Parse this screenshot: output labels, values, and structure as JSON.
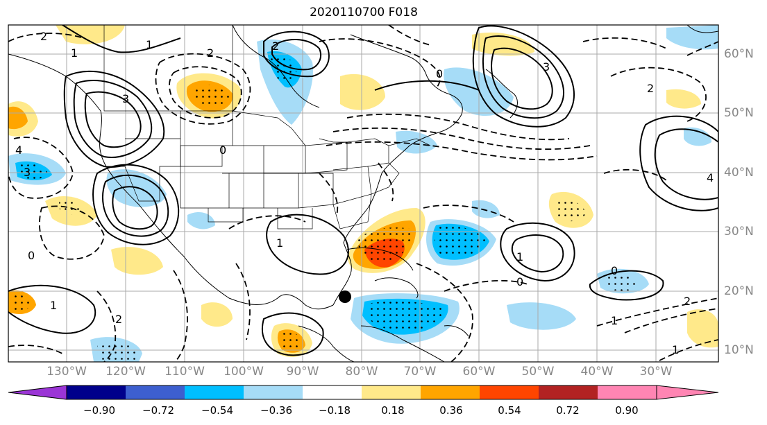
{
  "title": "2020110700 F018",
  "lon_labels": [
    "130°W",
    "120°W",
    "110°W",
    "100°W",
    "90°W",
    "80°W",
    "70°W",
    "60°W",
    "50°W",
    "40°W",
    "30°W"
  ],
  "lat_labels": [
    "60°N",
    "50°N",
    "40°N",
    "30°N",
    "20°N",
    "10°N"
  ],
  "colorbar": {
    "ticks": [
      "−0.90",
      "−0.72",
      "−0.54",
      "−0.36",
      "−0.18",
      "0.18",
      "0.36",
      "0.54",
      "0.72",
      "0.90"
    ],
    "colors": [
      "#9b35d6",
      "#00008b",
      "#3d5fcf",
      "#00bfff",
      "#a6dcf7",
      "#ffffff",
      "#ffe98a",
      "#ffa500",
      "#ff4500",
      "#b22222",
      "#ff85b3"
    ]
  },
  "contour_labels": [
    "2",
    "1",
    "3",
    "2",
    "0",
    "1",
    "2",
    "3",
    "4",
    "1",
    "0",
    "2",
    "1",
    "0",
    "2",
    "1",
    "0",
    "1",
    "4",
    "3",
    "2",
    "0",
    "1"
  ]
}
